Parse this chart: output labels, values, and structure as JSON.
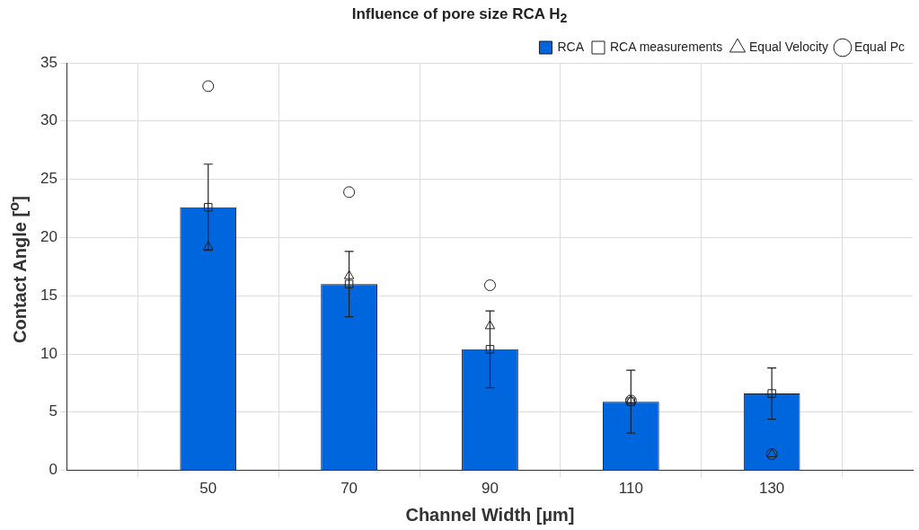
{
  "chart_data": {
    "type": "bar",
    "title": "Influence of pore size RCA H$_{2}$",
    "xlabel": "Channel Width [µm]",
    "ylabel": "Contact Angle [$^{o}$]",
    "x": [
      50,
      70,
      90,
      110,
      130
    ],
    "xlim": [
      30,
      150
    ],
    "xticks": [
      50,
      70,
      90,
      110,
      130
    ],
    "ylim": [
      0,
      35
    ],
    "yticks": [
      0,
      5,
      10,
      15,
      20,
      25,
      30,
      35
    ],
    "grid": true,
    "legend": "top right",
    "series": [
      {
        "name": "RCA",
        "color": "#0066dd",
        "values": [
          22.6,
          16.0,
          10.4,
          5.9,
          6.6
        ]
      },
      {
        "name": "RCA measurements",
        "type": "scatter",
        "marker": "square",
        "color": "#222222",
        "values": [
          22.6,
          16.0,
          10.4,
          5.9,
          6.6
        ],
        "errors": [
          3.7,
          2.8,
          3.3,
          2.7,
          2.2
        ]
      },
      {
        "name": "Equal Velocity",
        "type": "scatter",
        "marker": "triangle",
        "color": "#222222",
        "values": [
          19.2,
          16.7,
          12.4,
          6.0,
          1.4
        ]
      },
      {
        "name": "Equal Pc",
        "type": "scatter",
        "marker": "circle",
        "color": "#222222",
        "values": [
          33.0,
          23.9,
          15.9,
          6.0,
          1.4
        ]
      }
    ]
  }
}
